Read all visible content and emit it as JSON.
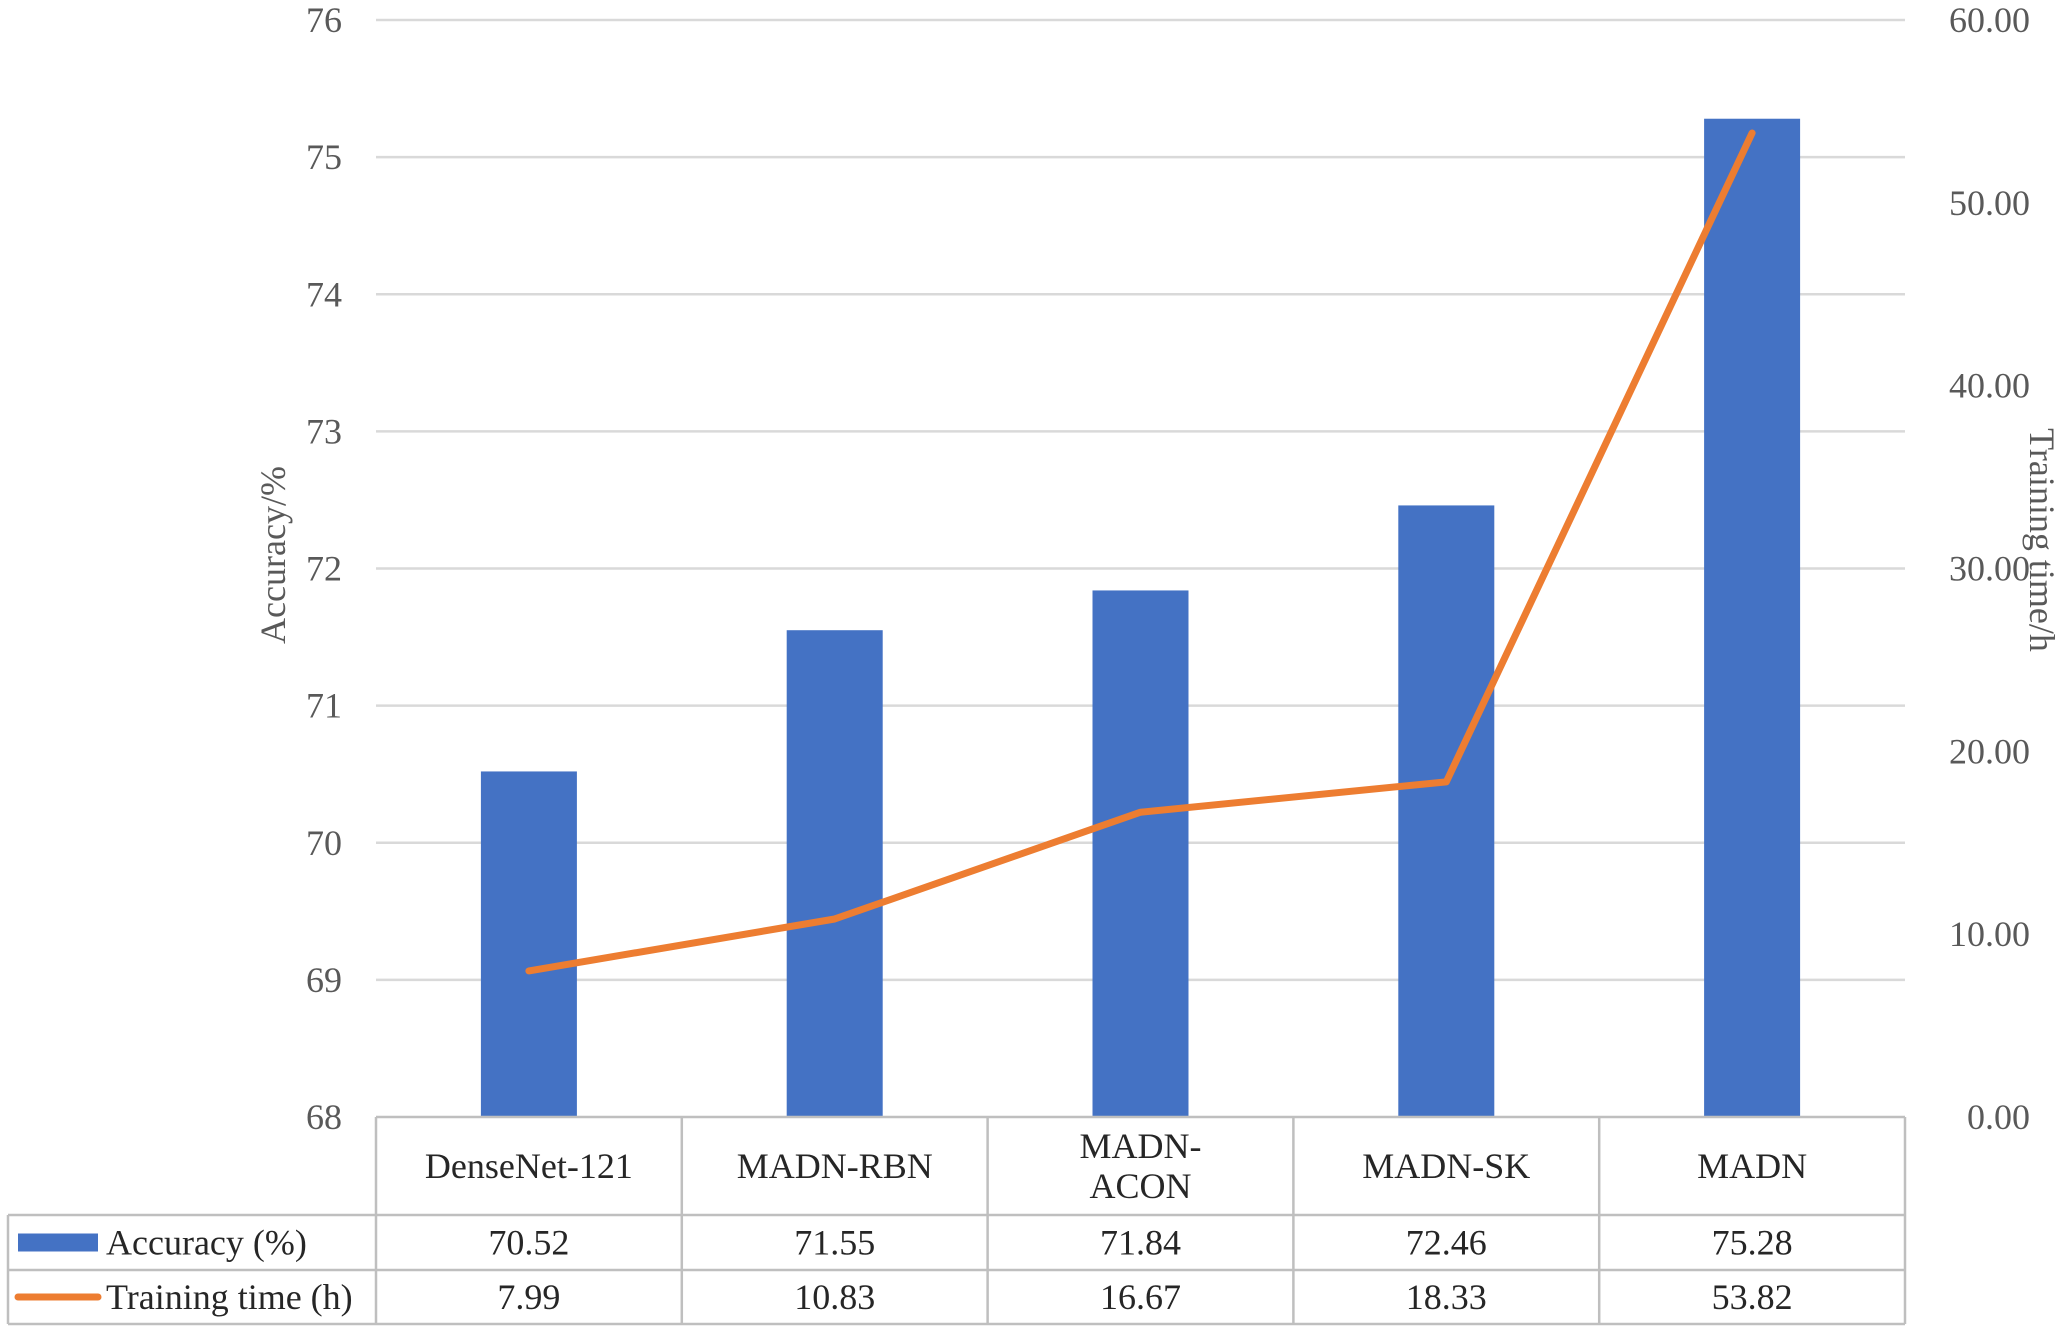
{
  "chart_data": {
    "type": "bar",
    "categories": [
      "DenseNet-121",
      "MADN-RBN",
      "MADN-ACON",
      "MADN-SK",
      "MADN"
    ],
    "category_lines": [
      [
        "DenseNet-121"
      ],
      [
        "MADN-RBN"
      ],
      [
        "MADN-",
        "ACON"
      ],
      [
        "MADN-SK"
      ],
      [
        "MADN"
      ]
    ],
    "series": [
      {
        "name": "Accuracy (%)",
        "type": "bar",
        "axis": "left",
        "color": "#4472C4",
        "values": [
          70.52,
          71.55,
          71.84,
          72.46,
          75.28
        ],
        "labels": [
          "70.52",
          "71.55",
          "71.84",
          "72.46",
          "75.28"
        ]
      },
      {
        "name": "Training time (h)",
        "type": "line",
        "axis": "right",
        "color": "#ED7D31",
        "values": [
          7.99,
          10.83,
          16.67,
          18.33,
          53.82
        ],
        "labels": [
          "7.99",
          "10.83",
          "16.67",
          "18.33",
          "53.82"
        ]
      }
    ],
    "y_left": {
      "label": "Accuracy/%",
      "min": 68,
      "max": 76,
      "ticks": [
        "68",
        "69",
        "70",
        "71",
        "72",
        "73",
        "74",
        "75",
        "76"
      ]
    },
    "y_right": {
      "label": "Training time/h",
      "min": 0,
      "max": 60,
      "ticks": [
        "0.00",
        "10.00",
        "20.00",
        "30.00",
        "40.00",
        "50.00",
        "60.00"
      ]
    },
    "grid": true,
    "legend": "data-table"
  }
}
